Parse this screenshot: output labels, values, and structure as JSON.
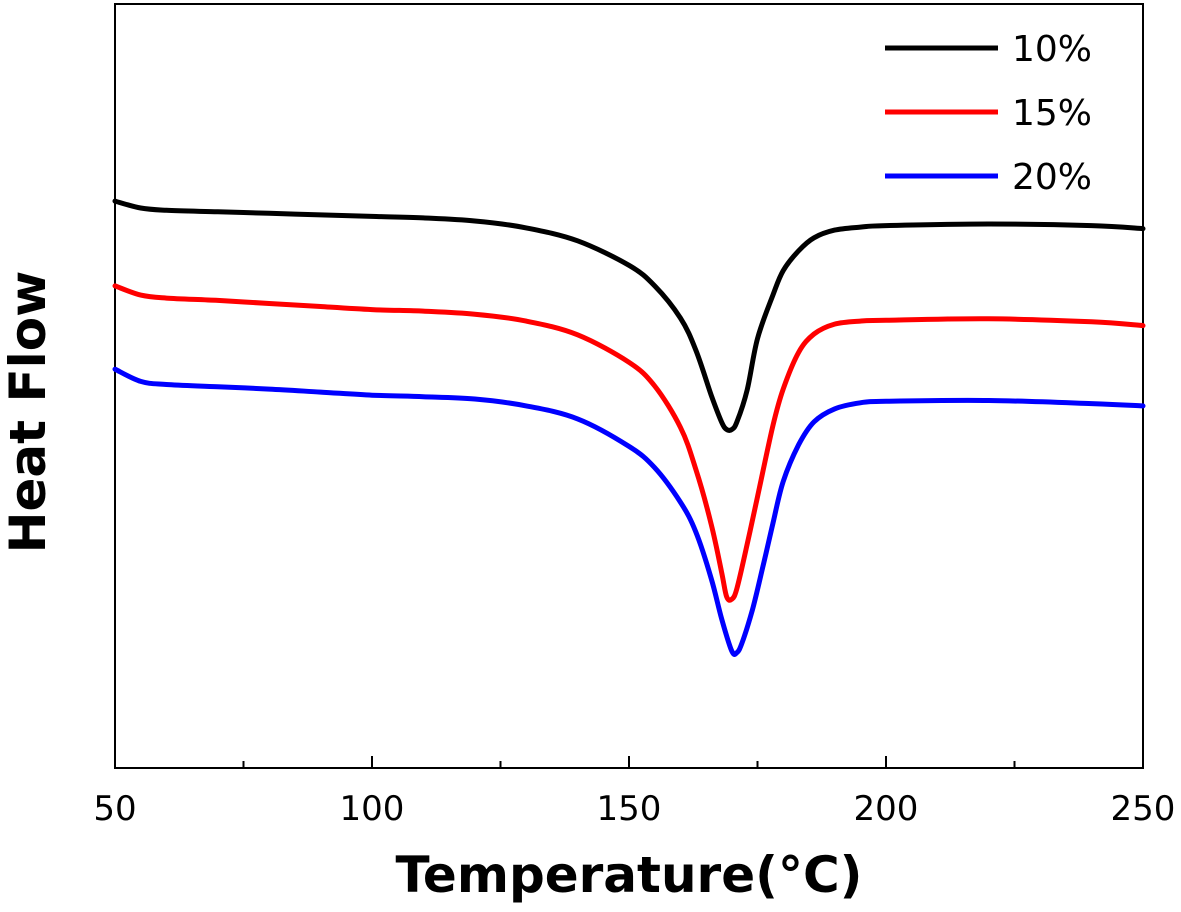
{
  "chart_data": {
    "type": "line",
    "xlabel": "Temperature(°C)",
    "ylabel": "Heat Flow",
    "xlim": [
      50,
      250
    ],
    "xticks": [
      50,
      100,
      150,
      200,
      250
    ],
    "x_minor_ticks": [
      75,
      125,
      175,
      225
    ],
    "y_tick_labels": "none",
    "ylim": [
      0,
      1
    ],
    "grid": false,
    "legend_position": "top-right",
    "series": [
      {
        "name": "10%",
        "color": "#000000",
        "points": [
          [
            50,
            0.742
          ],
          [
            55,
            0.733
          ],
          [
            60,
            0.73
          ],
          [
            70,
            0.728
          ],
          [
            80,
            0.726
          ],
          [
            90,
            0.724
          ],
          [
            100,
            0.722
          ],
          [
            110,
            0.72
          ],
          [
            120,
            0.716
          ],
          [
            130,
            0.707
          ],
          [
            140,
            0.69
          ],
          [
            150,
            0.658
          ],
          [
            155,
            0.631
          ],
          [
            160,
            0.589
          ],
          [
            163,
            0.547
          ],
          [
            166,
            0.488
          ],
          [
            168,
            0.453
          ],
          [
            169,
            0.443
          ],
          [
            170,
            0.443
          ],
          [
            171,
            0.453
          ],
          [
            173,
            0.495
          ],
          [
            175,
            0.562
          ],
          [
            178,
            0.619
          ],
          [
            180,
            0.651
          ],
          [
            183,
            0.677
          ],
          [
            186,
            0.694
          ],
          [
            190,
            0.704
          ],
          [
            195,
            0.708
          ],
          [
            200,
            0.71
          ],
          [
            220,
            0.712
          ],
          [
            240,
            0.71
          ],
          [
            250,
            0.706
          ]
        ]
      },
      {
        "name": "15%",
        "color": "#ff0000",
        "points": [
          [
            50,
            0.631
          ],
          [
            55,
            0.619
          ],
          [
            60,
            0.615
          ],
          [
            70,
            0.612
          ],
          [
            80,
            0.608
          ],
          [
            90,
            0.604
          ],
          [
            100,
            0.6
          ],
          [
            110,
            0.598
          ],
          [
            120,
            0.594
          ],
          [
            130,
            0.585
          ],
          [
            140,
            0.567
          ],
          [
            150,
            0.531
          ],
          [
            155,
            0.5
          ],
          [
            160,
            0.446
          ],
          [
            163,
            0.391
          ],
          [
            166,
            0.319
          ],
          [
            168,
            0.257
          ],
          [
            169,
            0.224
          ],
          [
            170,
            0.221
          ],
          [
            171,
            0.235
          ],
          [
            173,
            0.293
          ],
          [
            175,
            0.355
          ],
          [
            178,
            0.448
          ],
          [
            180,
            0.496
          ],
          [
            183,
            0.544
          ],
          [
            186,
            0.568
          ],
          [
            190,
            0.581
          ],
          [
            195,
            0.585
          ],
          [
            200,
            0.586
          ],
          [
            220,
            0.588
          ],
          [
            240,
            0.584
          ],
          [
            250,
            0.579
          ]
        ]
      },
      {
        "name": "20%",
        "color": "#0000ff",
        "points": [
          [
            50,
            0.522
          ],
          [
            55,
            0.506
          ],
          [
            60,
            0.502
          ],
          [
            70,
            0.499
          ],
          [
            80,
            0.496
          ],
          [
            90,
            0.492
          ],
          [
            100,
            0.488
          ],
          [
            110,
            0.486
          ],
          [
            120,
            0.483
          ],
          [
            130,
            0.474
          ],
          [
            140,
            0.457
          ],
          [
            150,
            0.421
          ],
          [
            155,
            0.393
          ],
          [
            160,
            0.348
          ],
          [
            163,
            0.309
          ],
          [
            166,
            0.248
          ],
          [
            168,
            0.196
          ],
          [
            170,
            0.153
          ],
          [
            171,
            0.151
          ],
          [
            172,
            0.164
          ],
          [
            174,
            0.207
          ],
          [
            176,
            0.262
          ],
          [
            178,
            0.32
          ],
          [
            180,
            0.375
          ],
          [
            183,
            0.423
          ],
          [
            186,
            0.453
          ],
          [
            190,
            0.47
          ],
          [
            195,
            0.478
          ],
          [
            200,
            0.48
          ],
          [
            220,
            0.481
          ],
          [
            240,
            0.477
          ],
          [
            250,
            0.474
          ]
        ]
      }
    ]
  }
}
